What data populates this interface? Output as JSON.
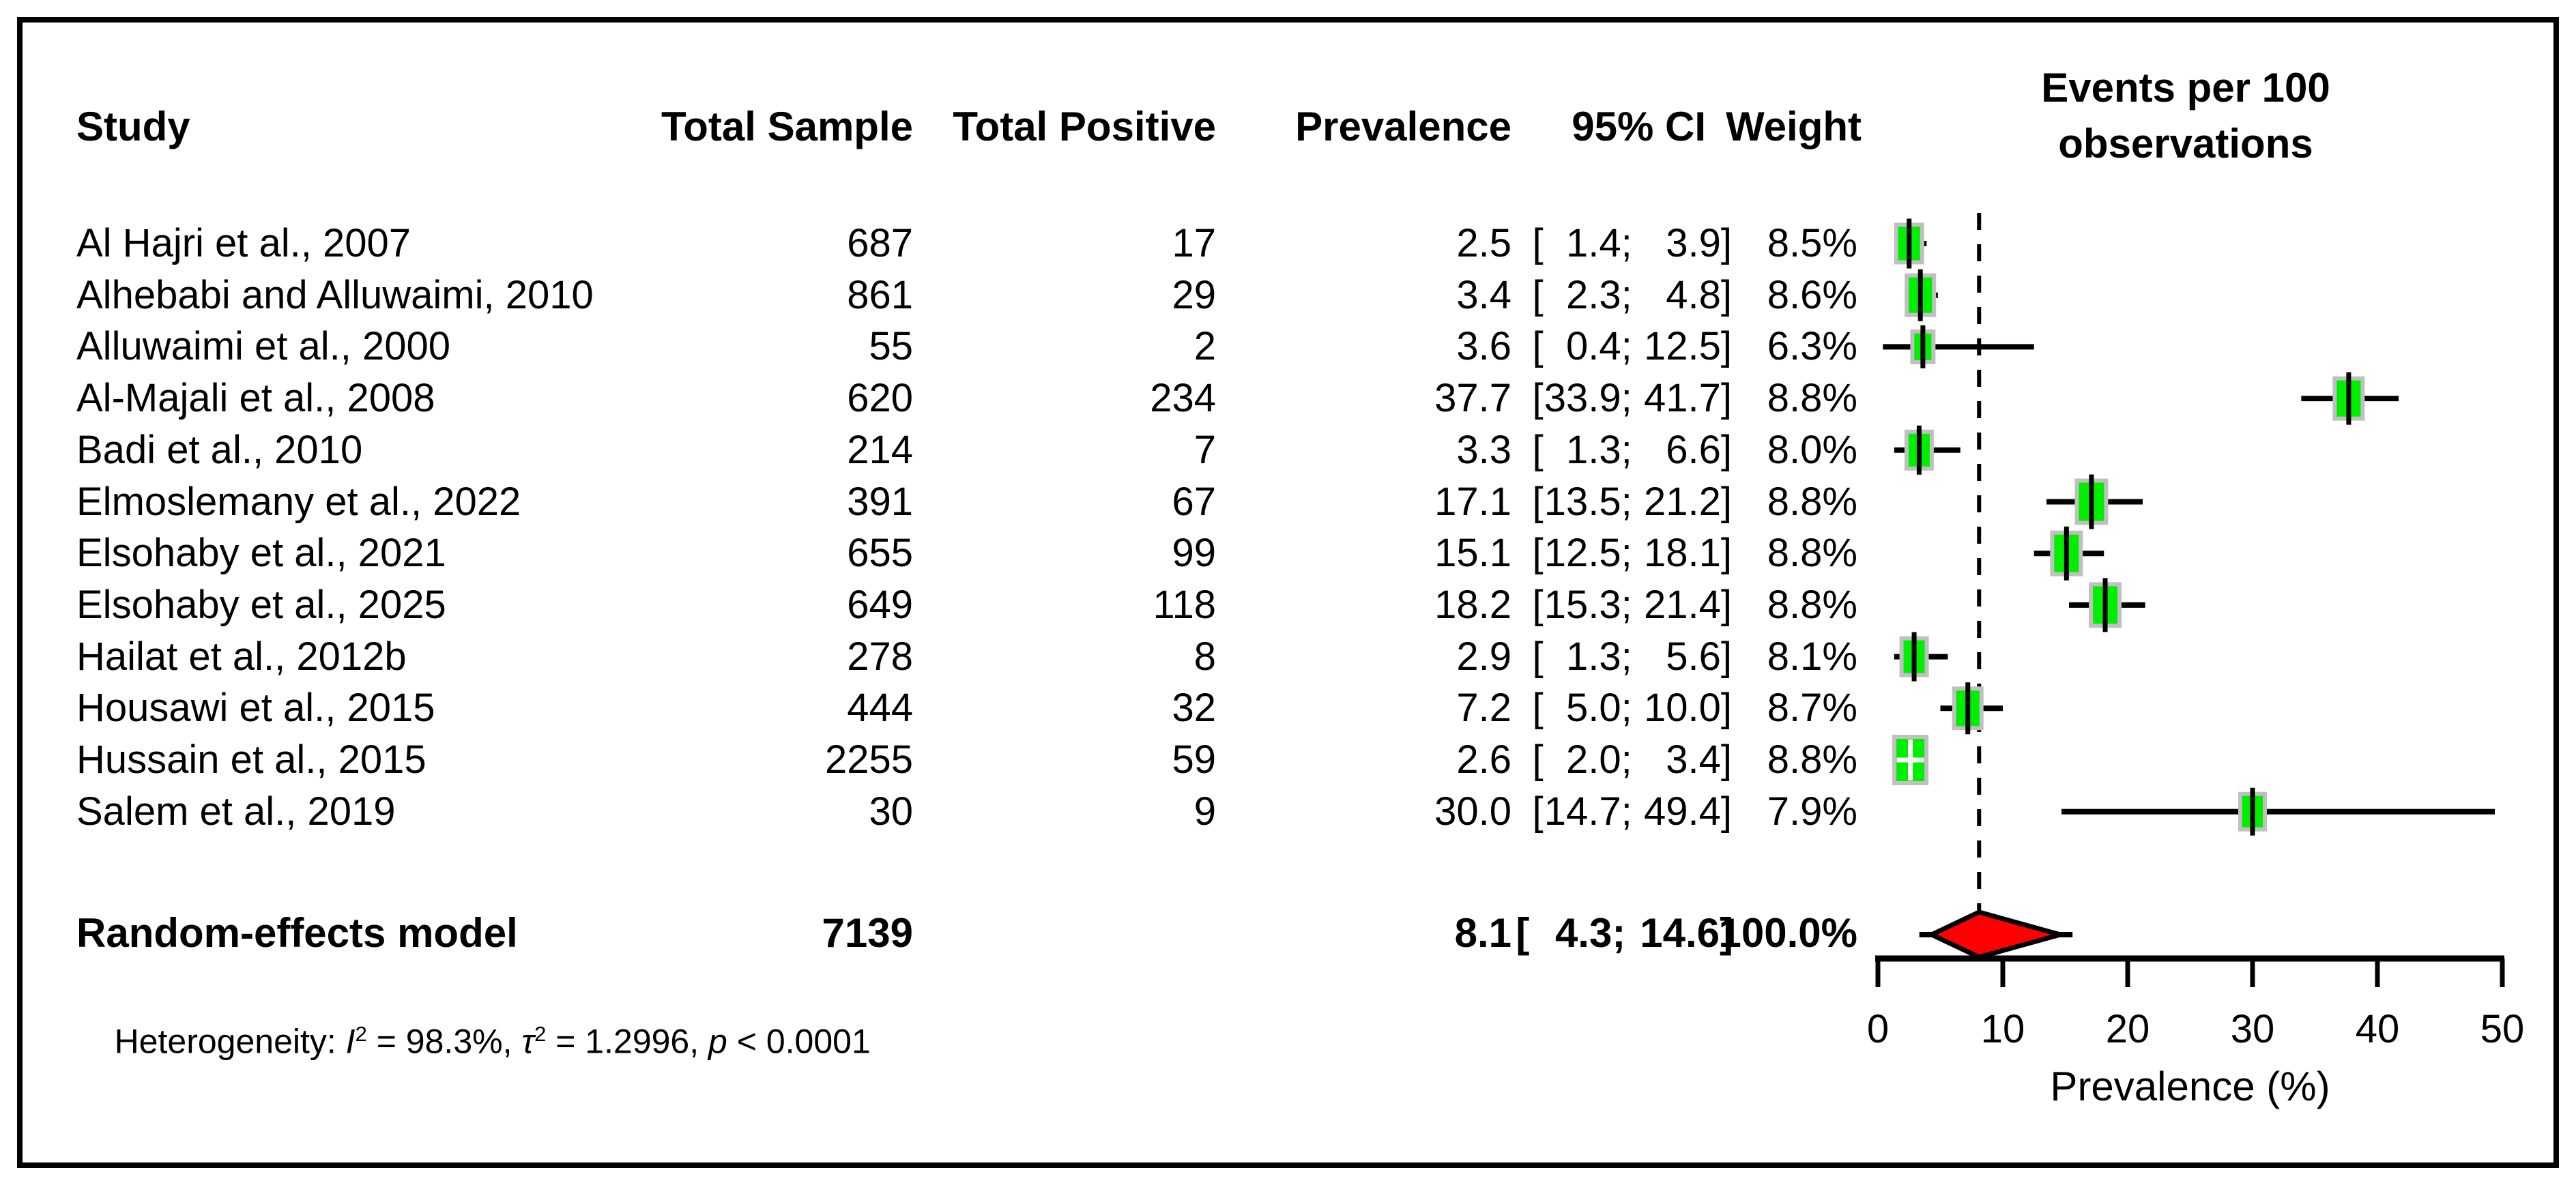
{
  "figure": {
    "headers": {
      "study": "Study",
      "total_sample": "Total Sample",
      "total_positive": "Total Positive",
      "prevalence": "Prevalence",
      "ci": "95% CI",
      "weight": "Weight"
    },
    "format": {
      "open": "[",
      "sep": "; ",
      "close": "]"
    },
    "total": {
      "label": "Random-effects model",
      "total_sample": "7139",
      "prevalence": "8.1",
      "ci_lower": "4.3",
      "ci_upper": "14.6",
      "weight": "100.0%"
    },
    "heterogeneity": {
      "prefix": "Heterogeneity: ",
      "i": "I",
      "sup": "2",
      "seg1": " = 98.3%, ",
      "tau": "τ",
      "seg2": " = 1.2996, ",
      "p": "p",
      "seg3": " < 0.0001"
    }
  },
  "chart_data": {
    "type": "forest",
    "title_lines": [
      "Events per 100",
      "observations"
    ],
    "xlabel": "Prevalence (%)",
    "xlim": [
      0,
      50
    ],
    "ticks": [
      0,
      10,
      20,
      30,
      40,
      50
    ],
    "reference_line": 8.1,
    "studies": [
      {
        "name": "Al Hajri et al., 2007",
        "total_sample": "687",
        "total_positive": "17",
        "prevalence": "2.5",
        "ci_lower": "1.4",
        "ci_upper": "3.9",
        "weight": "8.5%",
        "est": 2.5,
        "lo": 1.4,
        "hi": 3.9,
        "marker_w": 38,
        "cross": "#000000"
      },
      {
        "name": "Alhebabi and Alluwaimi, 2010",
        "total_sample": "861",
        "total_positive": "29",
        "prevalence": "3.4",
        "ci_lower": "2.3",
        "ci_upper": "4.8",
        "weight": "8.6%",
        "est": 3.4,
        "lo": 2.3,
        "hi": 4.8,
        "marker_w": 40,
        "cross": "#000000"
      },
      {
        "name": "Alluwaimi et al., 2000",
        "total_sample": "55",
        "total_positive": "2",
        "prevalence": "3.6",
        "ci_lower": "0.4",
        "ci_upper": "12.5",
        "weight": "6.3%",
        "est": 3.6,
        "lo": 0.4,
        "hi": 12.5,
        "marker_w": 31,
        "cross": "#000000"
      },
      {
        "name": "Al-Majali et al., 2008",
        "total_sample": "620",
        "total_positive": "234",
        "prevalence": "37.7",
        "ci_lower": "33.9",
        "ci_upper": "41.7",
        "weight": "8.8%",
        "est": 37.7,
        "lo": 33.9,
        "hi": 41.7,
        "marker_w": 41,
        "cross": "#000000"
      },
      {
        "name": "Badi et al., 2010",
        "total_sample": "214",
        "total_positive": "7",
        "prevalence": "3.3",
        "ci_lower": "1.3",
        "ci_upper": "6.6",
        "weight": "8.0%",
        "est": 3.3,
        "lo": 1.3,
        "hi": 6.6,
        "marker_w": 37,
        "cross": "#000000"
      },
      {
        "name": "Elmoslemany et al., 2022",
        "total_sample": "391",
        "total_positive": "67",
        "prevalence": "17.1",
        "ci_lower": "13.5",
        "ci_upper": "21.2",
        "weight": "8.8%",
        "est": 17.1,
        "lo": 13.5,
        "hi": 21.2,
        "marker_w": 43,
        "cross": "#000000"
      },
      {
        "name": "Elsohaby et al., 2021",
        "total_sample": "655",
        "total_positive": "99",
        "prevalence": "15.1",
        "ci_lower": "12.5",
        "ci_upper": "18.1",
        "weight": "8.8%",
        "est": 15.1,
        "lo": 12.5,
        "hi": 18.1,
        "marker_w": 42,
        "cross": "#000000"
      },
      {
        "name": "Elsohaby et al., 2025",
        "total_sample": "649",
        "total_positive": "118",
        "prevalence": "18.2",
        "ci_lower": "15.3",
        "ci_upper": "21.4",
        "weight": "8.8%",
        "est": 18.2,
        "lo": 15.3,
        "hi": 21.4,
        "marker_w": 42,
        "cross": "#000000"
      },
      {
        "name": "Hailat et al., 2012b",
        "total_sample": "278",
        "total_positive": "8",
        "prevalence": "2.9",
        "ci_lower": "1.3",
        "ci_upper": "5.6",
        "weight": "8.1%",
        "est": 2.9,
        "lo": 1.3,
        "hi": 5.6,
        "marker_w": 37,
        "cross": "#000000"
      },
      {
        "name": "Housawi et al., 2015",
        "total_sample": "444",
        "total_positive": "32",
        "prevalence": "7.2",
        "ci_lower": "5.0",
        "ci_upper": "10.0",
        "weight": "8.7%",
        "est": 7.2,
        "lo": 5.0,
        "hi": 10.0,
        "marker_w": 40,
        "cross": "#000000"
      },
      {
        "name": "Hussain et al., 2015",
        "total_sample": "2255",
        "total_positive": "59",
        "prevalence": "2.6",
        "ci_lower": "2.0",
        "ci_upper": "3.4",
        "weight": "8.8%",
        "est": 2.6,
        "lo": 2.0,
        "hi": 3.4,
        "marker_w": 47,
        "cross": "#ffffff"
      },
      {
        "name": "Salem et al., 2019",
        "total_sample": "30",
        "total_positive": "9",
        "prevalence": "30.0",
        "ci_lower": "14.7",
        "ci_upper": "49.4",
        "weight": "7.9%",
        "est": 30.0,
        "lo": 14.7,
        "hi": 49.4,
        "marker_w": 36,
        "cross": "#000000"
      }
    ],
    "pooled": {
      "est": 8.1,
      "lo": 4.3,
      "hi": 14.6,
      "weight": "100.0%"
    },
    "colors": {
      "marker": "#00ee00",
      "marker_border": "#c0c0c0",
      "pooled_fill": "#ff0000",
      "line": "#000000"
    }
  }
}
